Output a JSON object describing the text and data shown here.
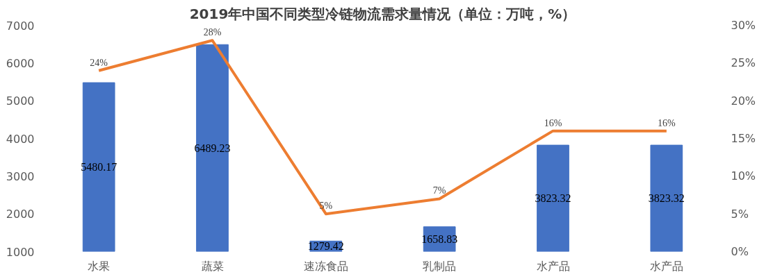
{
  "chart_data": {
    "type": "bar",
    "title": "2019年中国不同类型冷链物流需求量情况（单位：万吨，%）",
    "categories": [
      "水果",
      "蔬菜",
      "速冻食品",
      "乳制品",
      "水产品",
      "水产品"
    ],
    "ylim": [
      1000,
      7000
    ],
    "yticks": [
      1000,
      2000,
      3000,
      4000,
      5000,
      6000,
      7000
    ],
    "y2lim": [
      0,
      30
    ],
    "y2ticks": [
      {
        "value": 0,
        "label": "0%"
      },
      {
        "value": 5,
        "label": "5%"
      },
      {
        "value": 10,
        "label": "10%"
      },
      {
        "value": 15,
        "label": "15%"
      },
      {
        "value": 20,
        "label": "20%"
      },
      {
        "value": 25,
        "label": "25%"
      },
      {
        "value": 30,
        "label": "30%"
      }
    ],
    "grid": false,
    "series": [
      {
        "color": "#4472c4",
        "values": [
          5480.17,
          6489.23,
          1279.42,
          1658.83,
          3823.32,
          3823.32
        ],
        "value_labels": [
          "5480.17",
          "6489.23",
          "1279.42",
          "1658.83",
          "3823.32",
          "3823.32"
        ]
      },
      {
        "type": "line",
        "axis": "y2",
        "color": "#ed7d31",
        "values": [
          24,
          28,
          5,
          7,
          16,
          16
        ],
        "value_labels": [
          "24%",
          "28%",
          "5%",
          "7%",
          "16%",
          "16%"
        ],
        "marker": "none",
        "line_style": "solid"
      }
    ]
  }
}
